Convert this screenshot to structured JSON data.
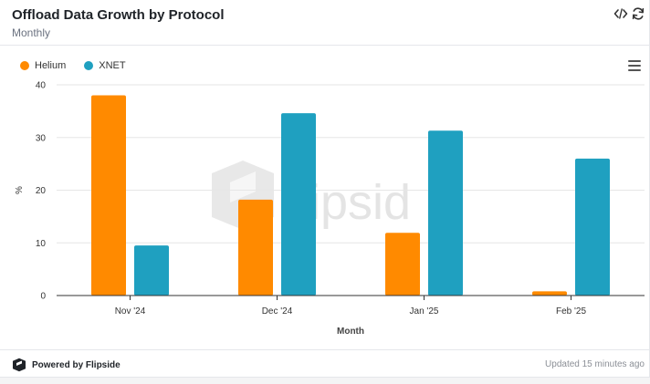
{
  "header": {
    "title": "Offload Data Growth by Protocol",
    "subtitle": "Monthly",
    "embed_icon": "code-icon",
    "refresh_icon": "refresh-icon"
  },
  "menu_icon": "hamburger-menu-icon",
  "watermark": "flipsid",
  "footer": {
    "brand": "Powered by Flipside",
    "updated": "Updated 15 minutes ago"
  },
  "colors": {
    "Helium": "#ff8a00",
    "XNET": "#1fa0c0"
  },
  "chart_data": {
    "type": "bar",
    "categories": [
      "Nov '24",
      "Dec '24",
      "Jan '25",
      "Feb '25"
    ],
    "series": [
      {
        "name": "Helium",
        "values": [
          38,
          18.2,
          11.9,
          0.8
        ]
      },
      {
        "name": "XNET",
        "values": [
          9.5,
          34.6,
          31.3,
          26
        ]
      }
    ],
    "title": "Offload Data Growth by Protocol",
    "xlabel": "Month",
    "ylabel": "%",
    "ylim": [
      0,
      40
    ],
    "yticks": [
      0,
      10,
      20,
      30,
      40
    ],
    "grid": true,
    "legend": "top-left"
  }
}
